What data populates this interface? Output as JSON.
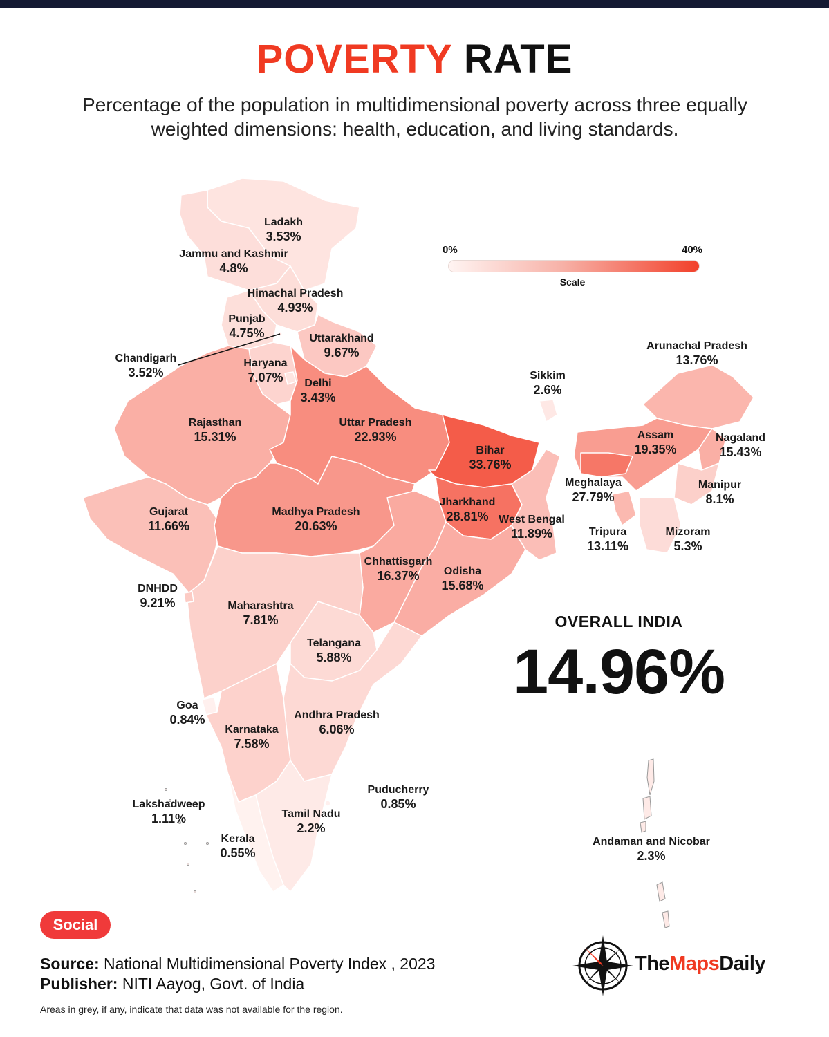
{
  "header": {
    "title_accent": "POVERTY",
    "title_rest": "RATE",
    "subtitle": "Percentage of the population in multidimensional poverty across three equally weighted dimensions: health, education, and living standards."
  },
  "scale": {
    "min_label": "0%",
    "max_label": "40%",
    "label": "Scale",
    "min_value": 0,
    "max_value": 40
  },
  "regions": [
    {
      "name": "Ladakh",
      "value": "3.53%",
      "pct": 3.53
    },
    {
      "name": "Jammu and Kashmir",
      "value": "4.8%",
      "pct": 4.8
    },
    {
      "name": "Himachal Pradesh",
      "value": "4.93%",
      "pct": 4.93
    },
    {
      "name": "Punjab",
      "value": "4.75%",
      "pct": 4.75
    },
    {
      "name": "Chandigarh",
      "value": "3.52%",
      "pct": 3.52
    },
    {
      "name": "Uttarakhand",
      "value": "9.67%",
      "pct": 9.67
    },
    {
      "name": "Haryana",
      "value": "7.07%",
      "pct": 7.07
    },
    {
      "name": "Delhi",
      "value": "3.43%",
      "pct": 3.43
    },
    {
      "name": "Rajasthan",
      "value": "15.31%",
      "pct": 15.31
    },
    {
      "name": "Uttar Pradesh",
      "value": "22.93%",
      "pct": 22.93
    },
    {
      "name": "Bihar",
      "value": "33.76%",
      "pct": 33.76
    },
    {
      "name": "Sikkim",
      "value": "2.6%",
      "pct": 2.6
    },
    {
      "name": "Arunachal Pradesh",
      "value": "13.76%",
      "pct": 13.76
    },
    {
      "name": "Assam",
      "value": "19.35%",
      "pct": 19.35
    },
    {
      "name": "Nagaland",
      "value": "15.43%",
      "pct": 15.43
    },
    {
      "name": "Meghalaya",
      "value": "27.79%",
      "pct": 27.79
    },
    {
      "name": "Manipur",
      "value": "8.1%",
      "pct": 8.1
    },
    {
      "name": "Jharkhand",
      "value": "28.81%",
      "pct": 28.81
    },
    {
      "name": "West Bengal",
      "value": "11.89%",
      "pct": 11.89
    },
    {
      "name": "Tripura",
      "value": "13.11%",
      "pct": 13.11
    },
    {
      "name": "Mizoram",
      "value": "5.3%",
      "pct": 5.3
    },
    {
      "name": "Gujarat",
      "value": "11.66%",
      "pct": 11.66
    },
    {
      "name": "Madhya Pradesh",
      "value": "20.63%",
      "pct": 20.63
    },
    {
      "name": "Chhattisgarh",
      "value": "16.37%",
      "pct": 16.37
    },
    {
      "name": "Odisha",
      "value": "15.68%",
      "pct": 15.68
    },
    {
      "name": "DNHDD",
      "value": "9.21%",
      "pct": 9.21
    },
    {
      "name": "Maharashtra",
      "value": "7.81%",
      "pct": 7.81
    },
    {
      "name": "Telangana",
      "value": "5.88%",
      "pct": 5.88
    },
    {
      "name": "Goa",
      "value": "0.84%",
      "pct": 0.84
    },
    {
      "name": "Andhra Pradesh",
      "value": "6.06%",
      "pct": 6.06
    },
    {
      "name": "Karnataka",
      "value": "7.58%",
      "pct": 7.58
    },
    {
      "name": "Puducherry",
      "value": "0.85%",
      "pct": 0.85
    },
    {
      "name": "Lakshadweep",
      "value": "1.11%",
      "pct": 1.11
    },
    {
      "name": "Tamil Nadu",
      "value": "2.2%",
      "pct": 2.2
    },
    {
      "name": "Kerala",
      "value": "0.55%",
      "pct": 0.55
    },
    {
      "name": "Andaman and Nicobar",
      "value": "2.3%",
      "pct": 2.3
    }
  ],
  "overall": {
    "label": "OVERALL INDIA",
    "value": "14.96%"
  },
  "footer": {
    "category": "Social",
    "source_label": "Source:",
    "source_text": "National Multidimensional Poverty Index , 2023",
    "publisher_label": "Publisher:",
    "publisher_text": "NITI Aayog, Govt. of India",
    "note": "Areas in grey, if any, indicate that data was not available for the region.",
    "brand_part1": "The",
    "brand_part2": "Maps",
    "brand_part3": "Daily"
  }
}
